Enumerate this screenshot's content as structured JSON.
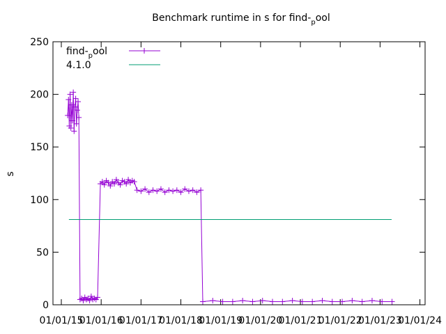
{
  "chart_data": {
    "type": "line",
    "title": [
      "Benchmark runtime in s for find-",
      "p",
      "ool"
    ],
    "y_label": "s",
    "xlim": [
      2014.79,
      2024.13
    ],
    "xticks": [
      {
        "value": 2015,
        "label": "01/01/15"
      },
      {
        "value": 2016,
        "label": "01/01/16"
      },
      {
        "value": 2017,
        "label": "01/01/17"
      },
      {
        "value": 2018,
        "label": "01/01/18"
      },
      {
        "value": 2019,
        "label": "01/01/19"
      },
      {
        "value": 2020,
        "label": "01/01/20"
      },
      {
        "value": 2021,
        "label": "01/01/21"
      },
      {
        "value": 2022,
        "label": "01/01/22"
      },
      {
        "value": 2023,
        "label": "01/01/23"
      },
      {
        "value": 2024,
        "label": "01/01/24"
      }
    ],
    "ylim": [
      0,
      250
    ],
    "yticks": [
      0,
      50,
      100,
      150,
      200,
      250
    ],
    "legend": "top-left",
    "series": [
      {
        "name": [
          "find-",
          "p",
          "ool"
        ],
        "color": "#9400d3",
        "marker": "plus",
        "x": [
          2015.16,
          2015.18,
          2015.2,
          2015.22,
          2015.24,
          2015.26,
          2015.28,
          2015.3,
          2015.32,
          2015.34,
          2015.36,
          2015.38,
          2015.4,
          2015.42,
          2015.44,
          2015.47,
          2015.51,
          2015.55,
          2015.59,
          2015.63,
          2015.67,
          2015.71,
          2015.75,
          2015.79,
          2015.83,
          2015.87,
          2015.91,
          2015.98,
          2016.03,
          2016.08,
          2016.13,
          2016.18,
          2016.23,
          2016.28,
          2016.33,
          2016.38,
          2016.43,
          2016.48,
          2016.53,
          2016.58,
          2016.63,
          2016.68,
          2016.73,
          2016.78,
          2016.83,
          2016.9,
          2017,
          2017.1,
          2017.2,
          2017.3,
          2017.4,
          2017.5,
          2017.6,
          2017.7,
          2017.8,
          2017.9,
          2018,
          2018.1,
          2018.2,
          2018.3,
          2018.4,
          2018.5,
          2018.55,
          2018.8,
          2019.05,
          2019.3,
          2019.55,
          2019.8,
          2020.05,
          2020.3,
          2020.55,
          2020.8,
          2021.05,
          2021.3,
          2021.55,
          2021.8,
          2022.05,
          2022.3,
          2022.55,
          2022.8,
          2023.05,
          2023.3
        ],
        "values": [
          180,
          195,
          170,
          200,
          168,
          190,
          175,
          202,
          165,
          188,
          196,
          172,
          185,
          193,
          178,
          5,
          6,
          4,
          7,
          5,
          6,
          4,
          8,
          5,
          6,
          5,
          7,
          115,
          117,
          114,
          118,
          116,
          113,
          117,
          115,
          119,
          116,
          114,
          118,
          117,
          115,
          119,
          116,
          118,
          117,
          109,
          108,
          110,
          107,
          109,
          108,
          110,
          107,
          109,
          108,
          109,
          107,
          110,
          108,
          109,
          107,
          109,
          3,
          4,
          3,
          3,
          4,
          3,
          4,
          3,
          3,
          4,
          3,
          3,
          4,
          3,
          3,
          4,
          3,
          4,
          3,
          3
        ]
      },
      {
        "name": [
          "4.1.0"
        ],
        "color": "#009e73",
        "x": [
          2015.19,
          2023.29
        ],
        "values": [
          81,
          81
        ]
      }
    ]
  }
}
